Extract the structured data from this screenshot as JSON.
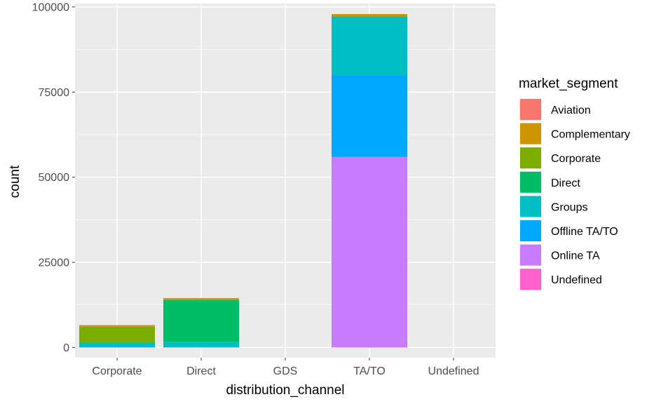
{
  "chart_data": {
    "type": "bar",
    "stacked": true,
    "xlabel": "distribution_channel",
    "ylabel": "count",
    "ylim": [
      -3000,
      101000
    ],
    "yticks": [
      0,
      25000,
      50000,
      75000,
      100000
    ],
    "ytick_labels": [
      "0",
      "25000",
      "50000",
      "75000",
      "100000"
    ],
    "grid": true,
    "legend_position": "right",
    "categories": [
      "Corporate",
      "Direct",
      "GDS",
      "TA/TO",
      "Undefined"
    ],
    "legend": {
      "title": "market_segment",
      "entries": [
        "Aviation",
        "Complementary",
        "Corporate",
        "Direct",
        "Groups",
        "Offline TA/TO",
        "Online TA",
        "Undefined"
      ]
    },
    "colors": {
      "Aviation": "#F8766D",
      "Complementary": "#CD9600",
      "Corporate": "#7CAE00",
      "Direct": "#00BE67",
      "Groups": "#00BFC4",
      "Offline TA/TO": "#00A9FF",
      "Online TA": "#C77CFF",
      "Undefined": "#FF61CC"
    },
    "series": [
      {
        "name": "Online TA",
        "values": [
          0,
          0,
          0,
          56000,
          0
        ]
      },
      {
        "name": "Offline TA/TO",
        "values": [
          200,
          0,
          0,
          24000,
          0
        ]
      },
      {
        "name": "Groups",
        "values": [
          1000,
          1600,
          0,
          17200,
          0
        ]
      },
      {
        "name": "Direct",
        "values": [
          300,
          12300,
          0,
          0,
          0
        ]
      },
      {
        "name": "Corporate",
        "values": [
          4700,
          100,
          0,
          0,
          0
        ]
      },
      {
        "name": "Complementary",
        "values": [
          200,
          500,
          0,
          700,
          0
        ]
      },
      {
        "name": "Aviation",
        "values": [
          200,
          0,
          0,
          0,
          0
        ]
      },
      {
        "name": "Undefined",
        "values": [
          0,
          0,
          0,
          0,
          0
        ]
      }
    ]
  }
}
